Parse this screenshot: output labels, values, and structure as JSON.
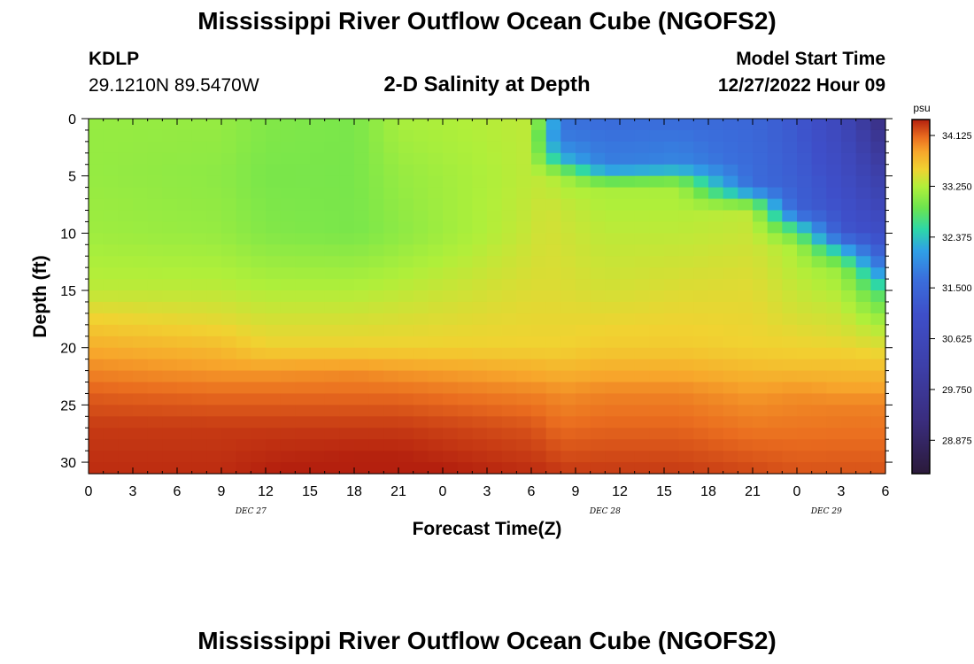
{
  "header": {
    "title": "Mississippi River Outflow Ocean Cube (NGOFS2)",
    "station": "KDLP",
    "coordinates": "29.1210N  89.5470W",
    "subtitle": "2-D Salinity at Depth",
    "model_start_label": "Model Start Time",
    "model_start_value": "12/27/2022 Hour 09"
  },
  "footer": {
    "title": "Mississippi River Outflow Ocean Cube (NGOFS2)"
  },
  "chart_data": {
    "type": "heatmap",
    "xlabel": "Forecast Time(Z)",
    "ylabel": "Depth (ft)",
    "x_range_hours": [
      0,
      54
    ],
    "ylim": [
      0,
      31
    ],
    "y_inverted": true,
    "x_ticks": [
      "0",
      "3",
      "6",
      "9",
      "12",
      "15",
      "18",
      "21",
      "0",
      "3",
      "6",
      "9",
      "12",
      "15",
      "18",
      "21",
      "0",
      "3",
      "6"
    ],
    "y_ticks": [
      0,
      5,
      10,
      15,
      20,
      25,
      30
    ],
    "date_labels": [
      {
        "label": "DEC 27",
        "hour": 11
      },
      {
        "label": "DEC 28",
        "hour": 35
      },
      {
        "label": "DEC 29",
        "hour": 50
      }
    ],
    "colorbar": {
      "unit": "psu",
      "range": [
        28.3,
        34.4
      ],
      "labels": [
        "34.125",
        "33.250",
        "32.375",
        "31.500",
        "30.625",
        "29.750",
        "28.875"
      ],
      "label_values": [
        34.125,
        33.25,
        32.375,
        31.5,
        30.625,
        29.75,
        28.875
      ]
    },
    "salinity_profiles": [
      {
        "hour": 0,
        "depth": [
          0,
          5,
          10,
          15,
          18,
          21,
          24,
          27,
          31
        ],
        "psu": [
          33.1,
          33.1,
          33.15,
          33.3,
          33.6,
          33.9,
          34.15,
          34.3,
          34.35
        ]
      },
      {
        "hour": 9,
        "depth": [
          0,
          5,
          10,
          15,
          18,
          21,
          24,
          27,
          31
        ],
        "psu": [
          33.1,
          33.05,
          33.1,
          33.3,
          33.5,
          33.8,
          34.1,
          34.3,
          34.35
        ]
      },
      {
        "hour": 12,
        "depth": [
          0,
          5,
          10,
          15,
          20,
          22,
          24,
          27,
          31
        ],
        "psu": [
          33.0,
          32.95,
          33.0,
          33.25,
          33.55,
          33.9,
          34.1,
          34.3,
          34.4
        ]
      },
      {
        "hour": 18,
        "depth": [
          0,
          5,
          10,
          15,
          20,
          22,
          24,
          27,
          31
        ],
        "psu": [
          32.95,
          32.95,
          32.95,
          33.25,
          33.55,
          33.95,
          34.1,
          34.3,
          34.45
        ]
      },
      {
        "hour": 21,
        "depth": [
          0,
          5,
          10,
          15,
          20,
          22,
          24,
          27,
          31
        ],
        "psu": [
          33.2,
          33.1,
          33.05,
          33.3,
          33.55,
          33.9,
          34.1,
          34.3,
          34.45
        ]
      },
      {
        "hour": 30,
        "depth": [
          0,
          5,
          10,
          15,
          20,
          22,
          24,
          27,
          31
        ],
        "psu": [
          33.3,
          33.3,
          33.35,
          33.45,
          33.55,
          33.8,
          34.0,
          34.2,
          34.35
        ]
      },
      {
        "hour": 31,
        "depth": [
          0,
          1,
          3,
          5,
          8,
          15,
          20,
          24,
          31
        ],
        "psu": [
          32.8,
          32.4,
          32.6,
          33.3,
          33.4,
          33.45,
          33.55,
          34.0,
          34.35
        ]
      },
      {
        "hour": 32,
        "depth": [
          0,
          2,
          3.5,
          5,
          8,
          15,
          20,
          24,
          31
        ],
        "psu": [
          31.7,
          31.8,
          32.3,
          33.2,
          33.35,
          33.45,
          33.55,
          33.95,
          34.3
        ]
      },
      {
        "hour": 35,
        "depth": [
          0,
          4,
          5,
          6,
          10,
          15,
          20,
          24,
          31
        ],
        "psu": [
          31.6,
          31.8,
          32.5,
          33.2,
          33.3,
          33.4,
          33.6,
          34.0,
          34.3
        ]
      },
      {
        "hour": 40,
        "depth": [
          0,
          4,
          5,
          6,
          10,
          15,
          20,
          24,
          31
        ],
        "psu": [
          31.6,
          31.9,
          32.7,
          33.2,
          33.3,
          33.45,
          33.6,
          34.0,
          34.3
        ]
      },
      {
        "hour": 45,
        "depth": [
          0,
          6,
          7,
          8,
          10,
          14,
          20,
          24,
          31
        ],
        "psu": [
          31.5,
          31.6,
          32.6,
          33.3,
          33.35,
          33.45,
          33.55,
          33.9,
          34.25
        ]
      },
      {
        "hour": 48,
        "depth": [
          0,
          8,
          9.5,
          11,
          14,
          17,
          21,
          24,
          31
        ],
        "psu": [
          31.2,
          31.4,
          32.5,
          33.2,
          33.3,
          33.4,
          33.6,
          33.95,
          34.2
        ]
      },
      {
        "hour": 51,
        "depth": [
          0,
          10,
          11.5,
          13,
          16,
          19,
          22,
          25,
          31
        ],
        "psu": [
          30.6,
          31.2,
          32.3,
          33.1,
          33.3,
          33.45,
          33.7,
          34.0,
          34.2
        ]
      },
      {
        "hour": 54,
        "depth": [
          0,
          12,
          15,
          18,
          20,
          22,
          25,
          31
        ],
        "psu": [
          29.2,
          31.3,
          32.6,
          33.2,
          33.45,
          33.7,
          34.0,
          34.2
        ]
      }
    ]
  }
}
